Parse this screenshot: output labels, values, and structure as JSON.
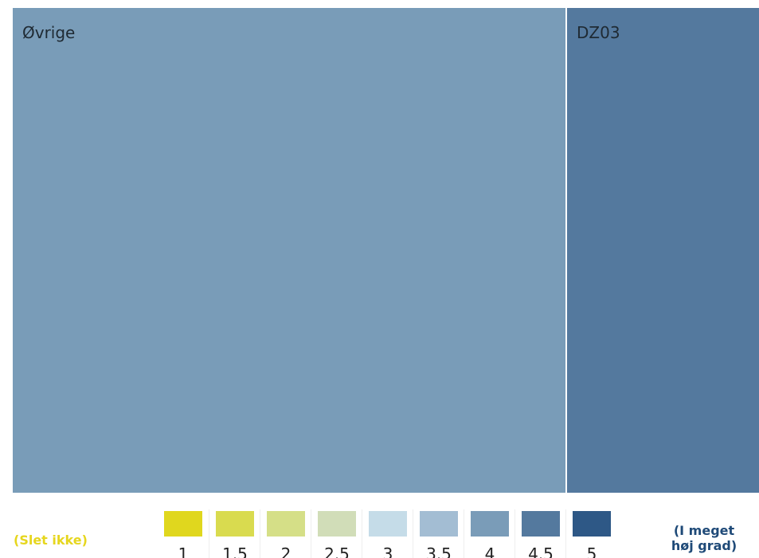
{
  "chart_data": {
    "type": "treemap",
    "items": [
      {
        "label": "Øvrige",
        "color": "#799cb8"
      },
      {
        "label": "DZ03",
        "color": "#54799e"
      }
    ],
    "legend": {
      "low_label": "(Slet ikke)",
      "high_label_line1": "(I meget",
      "high_label_line2": "høj grad)",
      "low_color": "#e6d61e",
      "high_color": "#1f4a78",
      "scale": [
        {
          "value": "1",
          "color": "#e0d71e"
        },
        {
          "value": "1.5",
          "color": "#d9db4f"
        },
        {
          "value": "2",
          "color": "#d5df87"
        },
        {
          "value": "2.5",
          "color": "#d1ddb8"
        },
        {
          "value": "3",
          "color": "#c5dce8"
        },
        {
          "value": "3.5",
          "color": "#a3bdd3"
        },
        {
          "value": "4",
          "color": "#7a9cb8"
        },
        {
          "value": "4.5",
          "color": "#54799e"
        },
        {
          "value": "5",
          "color": "#2e5886"
        }
      ]
    }
  }
}
